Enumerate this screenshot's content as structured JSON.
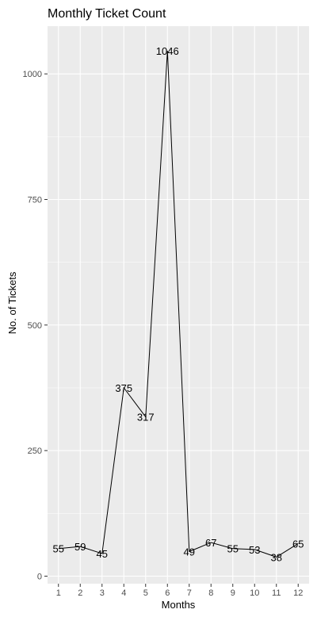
{
  "chart_data": {
    "type": "line",
    "title": "Monthly Ticket Count",
    "xlabel": "Months",
    "ylabel": "No. of Tickets",
    "x": [
      1,
      2,
      3,
      4,
      5,
      6,
      7,
      8,
      9,
      10,
      11,
      12
    ],
    "x_tick_labels": [
      "1",
      "2",
      "3",
      "4",
      "5",
      "6",
      "7",
      "8",
      "9",
      "10",
      "11",
      "12"
    ],
    "series": [
      {
        "values": [
          55,
          59,
          45,
          375,
          317,
          1046,
          49,
          67,
          55,
          53,
          38,
          65
        ]
      }
    ],
    "data_labels": [
      "55",
      "59",
      "45",
      "375",
      "317",
      "1046",
      "49",
      "67",
      "55",
      "53",
      "38",
      "65"
    ],
    "y_ticks": [
      0,
      250,
      500,
      750,
      1000
    ],
    "y_tick_labels": [
      "0",
      "250",
      "500",
      "750",
      "1000"
    ],
    "xlim": [
      0.5,
      12.5
    ],
    "ylim": [
      -15,
      1095
    ],
    "grid": true,
    "colors": {
      "panel_background": "#ebebeb",
      "grid_line": "#ffffff",
      "series_line": "#000000"
    }
  }
}
